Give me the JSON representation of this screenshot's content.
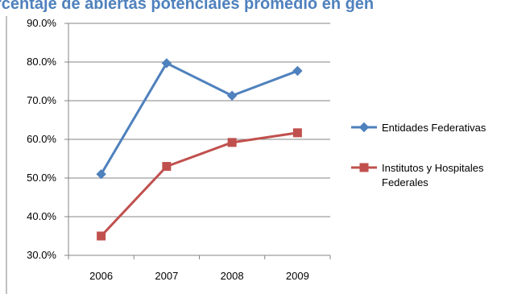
{
  "chart_data": {
    "type": "line",
    "title": "rcentaje de abiertas potenciales promedio en gen",
    "categories": [
      "2006",
      "2007",
      "2008",
      "2009"
    ],
    "ylim": [
      30,
      90
    ],
    "yticks": [
      "90.0%",
      "80.0%",
      "70.0%",
      "60.0%",
      "50.0%",
      "40.0%",
      "30.0%"
    ],
    "ytick_values": [
      90,
      80,
      70,
      60,
      50,
      40,
      30
    ],
    "grid": true,
    "legend_position": "right",
    "series": [
      {
        "name": "Entidades Federativas",
        "name_lines": [
          "Entidades Federativas"
        ],
        "values": [
          51.0,
          79.7,
          71.3,
          77.7
        ],
        "color": "#4f81bd",
        "marker": "diamond"
      },
      {
        "name": "Institutos y Hospitales Federales",
        "name_lines": [
          "Institutos y Hospitales",
          "Federales"
        ],
        "values": [
          35.0,
          53.0,
          59.2,
          61.7
        ],
        "color": "#c0504d",
        "marker": "square"
      }
    ]
  }
}
